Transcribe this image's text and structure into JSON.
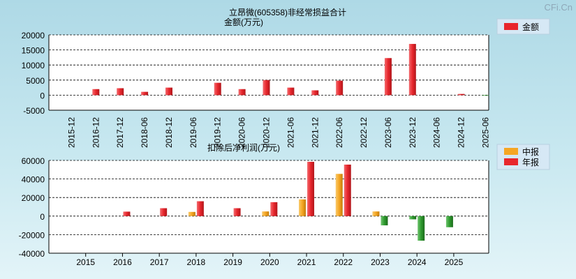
{
  "watermark": "CFi.Cn",
  "chart_data": [
    {
      "type": "bar",
      "title": "立昂微(605358)非经常损益合计",
      "ylabel": "金额(万元)",
      "legend": [
        "金额"
      ],
      "legend_placement": "top-right",
      "ylim": [
        -5000,
        20000
      ],
      "yticks": [
        20000,
        15000,
        10000,
        5000,
        0,
        -5000
      ],
      "categories": [
        "2015-12",
        "2016-12",
        "2017-12",
        "2018-06",
        "2018-12",
        "2019-06",
        "2019-12",
        "2020-06",
        "2020-12",
        "2021-06",
        "2021-12",
        "2022-06",
        "2022-12",
        "2023-06",
        "2023-12",
        "2024-06",
        "2024-12",
        "2025-06"
      ],
      "series": [
        {
          "name": "金额",
          "values": [
            null,
            2000,
            2300,
            1100,
            2500,
            null,
            4100,
            2000,
            5000,
            2500,
            1600,
            4800,
            null,
            12300,
            17000,
            null,
            400,
            -150
          ]
        }
      ],
      "colors": {
        "positive": "#e8262c",
        "negative": "#2e9a2e"
      }
    },
    {
      "type": "bar",
      "title": "扣除后净利润(万元)",
      "legend": [
        "中报",
        "年报"
      ],
      "legend_placement": "top-right",
      "ylim": [
        -40000,
        60000
      ],
      "yticks": [
        60000,
        40000,
        20000,
        0,
        -20000,
        -40000
      ],
      "categories": [
        "2015",
        "2016",
        "2017",
        "2018",
        "2019",
        "2020",
        "2021",
        "2022",
        "2023",
        "2024",
        "2025"
      ],
      "series": [
        {
          "name": "中报",
          "values": [
            null,
            null,
            null,
            4500,
            null,
            5000,
            18000,
            45500,
            5000,
            -3500,
            -12000
          ]
        },
        {
          "name": "年报",
          "values": [
            null,
            4800,
            8500,
            16000,
            8500,
            15000,
            58500,
            55500,
            -10000,
            -26500,
            null
          ]
        }
      ],
      "colors": {
        "中报": "#f5a623",
        "年报": "#e8262c",
        "negative": "#2e9a2e"
      }
    }
  ]
}
